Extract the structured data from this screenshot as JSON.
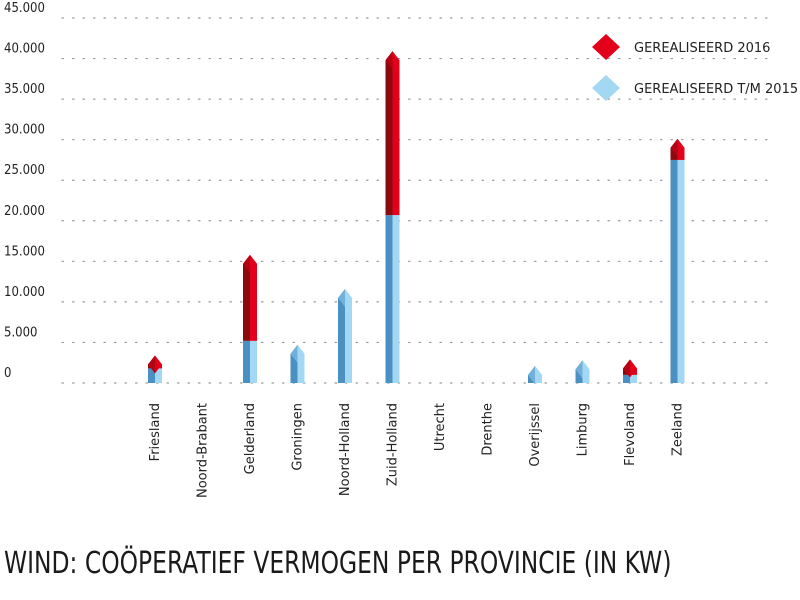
{
  "chart_data": {
    "type": "bar",
    "title": "WIND: COÖPERATIEF VERMOGEN PER PROVINCIE (IN KW)",
    "categories": [
      "Friesland",
      "Noord-Brabant",
      "Gelderland",
      "Groningen",
      "Noord-Holland",
      "Zuid-Holland",
      "Utrecht",
      "Drenthe",
      "Overijssel",
      "Limburg",
      "Flevoland",
      "Zeeland"
    ],
    "series": [
      {
        "name": "GEREALISEERD T/M 2015",
        "color": "#a3d8f4",
        "colorDark": "#4a90c2",
        "values": [
          1800,
          0,
          5200,
          3600,
          10500,
          20700,
          0,
          0,
          1000,
          1700,
          1000,
          27500
        ]
      },
      {
        "name": "GEREALISEERD 2016",
        "color": "#e2001a",
        "colorDark": "#8a0a0e",
        "values": [
          500,
          0,
          9500,
          0,
          0,
          19100,
          0,
          0,
          0,
          0,
          800,
          1500
        ]
      }
    ],
    "stacked": true,
    "ylim": [
      0,
      45000
    ],
    "yticks": [
      "0",
      "5.000",
      "10.000",
      "15.000",
      "20.000",
      "25.000",
      "30.000",
      "35.000",
      "40.000",
      "45.000"
    ],
    "grid": "dotted horizontal",
    "legend_position": "top-right",
    "xlabel": "",
    "ylabel": ""
  }
}
